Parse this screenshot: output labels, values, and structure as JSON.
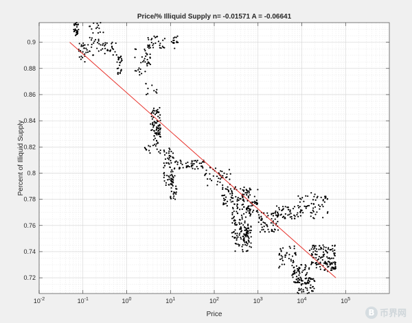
{
  "chart_data": {
    "type": "scatter",
    "title": "Price/% Illiquid Supply n= -0.01571 A = -0.06641",
    "xlabel": "Price",
    "ylabel": "Percent of Illiquid Supply",
    "xscale": "log",
    "xlim": [
      0.01,
      1000000
    ],
    "ylim": [
      0.708,
      0.915
    ],
    "x_ticks": [
      0.01,
      0.1,
      1,
      10,
      100,
      1000,
      10000,
      100000
    ],
    "x_tick_labels": [
      {
        "base": "10",
        "exp": "-2"
      },
      {
        "base": "10",
        "exp": "-1"
      },
      {
        "base": "10",
        "exp": "0"
      },
      {
        "base": "10",
        "exp": "1"
      },
      {
        "base": "10",
        "exp": "2"
      },
      {
        "base": "10",
        "exp": "3"
      },
      {
        "base": "10",
        "exp": "4"
      },
      {
        "base": "10",
        "exp": "5"
      }
    ],
    "y_ticks": [
      0.72,
      0.74,
      0.76,
      0.78,
      0.8,
      0.82,
      0.84,
      0.86,
      0.88,
      0.9
    ],
    "y_tick_labels": [
      "0.72",
      "0.74",
      "0.76",
      "0.78",
      "0.8",
      "0.82",
      "0.84",
      "0.86",
      "0.88",
      "0.9"
    ],
    "grid": true,
    "minor_grid": true,
    "fit_line": {
      "color": "#e8302a",
      "x": [
        0.05,
        60000
      ],
      "y": [
        0.9,
        0.72
      ]
    },
    "point_color": "#000000",
    "clusters": [
      {
        "x": [
          0.06,
          0.08
        ],
        "y": [
          0.905,
          0.915
        ],
        "n": 30
      },
      {
        "x": [
          0.08,
          0.13
        ],
        "y": [
          0.885,
          0.9
        ],
        "n": 25
      },
      {
        "x": [
          0.13,
          0.3
        ],
        "y": [
          0.89,
          0.915
        ],
        "n": 35
      },
      {
        "x": [
          0.25,
          0.6
        ],
        "y": [
          0.89,
          0.9
        ],
        "n": 25
      },
      {
        "x": [
          0.6,
          0.8
        ],
        "y": [
          0.875,
          0.89
        ],
        "n": 25
      },
      {
        "x": [
          1.5,
          3.5
        ],
        "y": [
          0.875,
          0.895
        ],
        "n": 35
      },
      {
        "x": [
          3,
          8
        ],
        "y": [
          0.895,
          0.905
        ],
        "n": 30
      },
      {
        "x": [
          10,
          15
        ],
        "y": [
          0.895,
          0.905
        ],
        "n": 15
      },
      {
        "x": [
          2.5,
          5
        ],
        "y": [
          0.86,
          0.87
        ],
        "n": 10
      },
      {
        "x": [
          3.5,
          6
        ],
        "y": [
          0.83,
          0.85
        ],
        "n": 60
      },
      {
        "x": [
          4,
          6
        ],
        "y": [
          0.815,
          0.835
        ],
        "n": 30
      },
      {
        "x": [
          2.5,
          3.5
        ],
        "y": [
          0.815,
          0.822
        ],
        "n": 8
      },
      {
        "x": [
          7,
          12
        ],
        "y": [
          0.79,
          0.82
        ],
        "n": 60
      },
      {
        "x": [
          10,
          14
        ],
        "y": [
          0.78,
          0.8
        ],
        "n": 30
      },
      {
        "x": [
          12,
          60
        ],
        "y": [
          0.803,
          0.81
        ],
        "n": 50
      },
      {
        "x": [
          60,
          250
        ],
        "y": [
          0.79,
          0.805
        ],
        "n": 40
      },
      {
        "x": [
          150,
          500
        ],
        "y": [
          0.775,
          0.79
        ],
        "n": 70
      },
      {
        "x": [
          250,
          700
        ],
        "y": [
          0.75,
          0.775
        ],
        "n": 100
      },
      {
        "x": [
          300,
          700
        ],
        "y": [
          0.74,
          0.76
        ],
        "n": 60
      },
      {
        "x": [
          500,
          1000
        ],
        "y": [
          0.77,
          0.79
        ],
        "n": 50
      },
      {
        "x": [
          1000,
          3000
        ],
        "y": [
          0.755,
          0.77
        ],
        "n": 60
      },
      {
        "x": [
          2500,
          10000
        ],
        "y": [
          0.765,
          0.775
        ],
        "n": 50
      },
      {
        "x": [
          8000,
          40000
        ],
        "y": [
          0.765,
          0.785
        ],
        "n": 60
      },
      {
        "x": [
          3000,
          8000
        ],
        "y": [
          0.725,
          0.745
        ],
        "n": 40
      },
      {
        "x": [
          6000,
          15000
        ],
        "y": [
          0.715,
          0.73
        ],
        "n": 60
      },
      {
        "x": [
          8000,
          20000
        ],
        "y": [
          0.708,
          0.72
        ],
        "n": 50
      },
      {
        "x": [
          15000,
          60000
        ],
        "y": [
          0.73,
          0.745
        ],
        "n": 90
      },
      {
        "x": [
          20000,
          60000
        ],
        "y": [
          0.725,
          0.732
        ],
        "n": 40
      }
    ]
  },
  "watermark": {
    "icon": "B",
    "text": "币界网"
  }
}
